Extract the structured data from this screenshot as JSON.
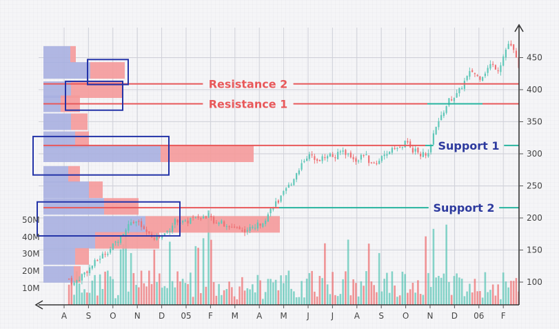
{
  "chart_data": {
    "type": "candlestick",
    "x_ticks": [
      "A",
      "S",
      "O",
      "N",
      "D",
      "05",
      "F",
      "M",
      "A",
      "M",
      "J",
      "J",
      "A",
      "S",
      "O",
      "N",
      "D",
      "06",
      "F"
    ],
    "y_ticks": [
      "450",
      "400",
      "350",
      "300",
      "250",
      "200",
      "150",
      "100"
    ],
    "y_range": [
      50,
      480
    ],
    "volume_ticks": [
      "50M",
      "40M",
      "30M",
      "20M",
      "10M"
    ],
    "levels": [
      {
        "label": "Resistance 2",
        "value": 409,
        "kind": "resistance"
      },
      {
        "label": "Resistance 1",
        "value": 378,
        "kind": "resistance"
      },
      {
        "label": "Support 1",
        "value": 313,
        "kind": "support"
      },
      {
        "label": "Support 2",
        "value": 216,
        "kind": "support"
      }
    ],
    "price_path": [
      [
        0.2,
        105
      ],
      [
        0.4,
        97
      ],
      [
        0.7,
        110
      ],
      [
        1.0,
        120
      ],
      [
        1.3,
        132
      ],
      [
        1.6,
        143
      ],
      [
        1.9,
        152
      ],
      [
        2.2,
        166
      ],
      [
        2.5,
        180
      ],
      [
        2.8,
        198
      ],
      [
        3.0,
        193
      ],
      [
        3.3,
        180
      ],
      [
        3.6,
        168
      ],
      [
        4.0,
        172
      ],
      [
        4.3,
        182
      ],
      [
        4.6,
        198
      ],
      [
        4.8,
        193
      ],
      [
        5.0,
        192
      ],
      [
        5.2,
        200
      ],
      [
        5.5,
        196
      ],
      [
        5.8,
        204
      ],
      [
        6.1,
        196
      ],
      [
        6.4,
        194
      ],
      [
        6.7,
        183
      ],
      [
        7.0,
        188
      ],
      [
        7.3,
        180
      ],
      [
        7.6,
        183
      ],
      [
        8.0,
        190
      ],
      [
        8.3,
        202
      ],
      [
        8.6,
        222
      ],
      [
        8.8,
        226
      ],
      [
        9.0,
        238
      ],
      [
        9.3,
        255
      ],
      [
        9.6,
        275
      ],
      [
        9.9,
        296
      ],
      [
        10.2,
        296
      ],
      [
        10.5,
        291
      ],
      [
        10.8,
        300
      ],
      [
        11.1,
        294
      ],
      [
        11.4,
        306
      ],
      [
        11.7,
        297
      ],
      [
        12.0,
        290
      ],
      [
        12.3,
        300
      ],
      [
        12.6,
        282
      ],
      [
        12.9,
        290
      ],
      [
        13.2,
        296
      ],
      [
        13.5,
        314
      ],
      [
        13.7,
        306
      ],
      [
        14.0,
        318
      ],
      [
        14.3,
        306
      ],
      [
        14.6,
        300
      ],
      [
        14.9,
        296
      ],
      [
        15.2,
        336
      ],
      [
        15.5,
        362
      ],
      [
        15.8,
        385
      ],
      [
        16.1,
        392
      ],
      [
        16.4,
        412
      ],
      [
        16.7,
        430
      ],
      [
        17.0,
        418
      ],
      [
        17.2,
        425
      ],
      [
        17.5,
        440
      ],
      [
        17.8,
        432
      ],
      [
        18.0,
        452
      ],
      [
        18.2,
        472
      ],
      [
        18.4,
        462
      ],
      [
        18.6,
        440
      ],
      [
        18.8,
        430
      ],
      [
        19.0,
        412
      ],
      [
        19.2,
        405
      ],
      [
        19.4,
        378
      ],
      [
        19.6,
        352
      ],
      [
        19.8,
        340
      ]
    ],
    "volume_profile": [
      {
        "price": 455,
        "buy": 39,
        "sell": 8
      },
      {
        "price": 430,
        "buy": 68,
        "sell": 50
      },
      {
        "price": 400,
        "buy": 40,
        "sell": 76
      },
      {
        "price": 378,
        "buy": 25,
        "sell": 28
      },
      {
        "price": 350,
        "buy": 40,
        "sell": 24
      },
      {
        "price": 322,
        "buy": 46,
        "sell": 20
      },
      {
        "price": 300,
        "buy": 170,
        "sell": 135
      },
      {
        "price": 268,
        "buy": 36,
        "sell": 17
      },
      {
        "price": 244,
        "buy": 66,
        "sell": 20
      },
      {
        "price": 218,
        "buy": 88,
        "sell": 50
      },
      {
        "price": 190,
        "buy": 148,
        "sell": 195
      },
      {
        "price": 165,
        "buy": 75,
        "sell": 93
      },
      {
        "price": 140,
        "buy": 46,
        "sell": 20
      },
      {
        "price": 112,
        "buy": 44,
        "sell": 10
      }
    ],
    "callout_boxes": [
      {
        "low": 408,
        "high": 447
      },
      {
        "low": 368,
        "high": 413
      },
      {
        "low": 267,
        "high": 327
      },
      {
        "low": 172,
        "high": 225
      }
    ],
    "colors": {
      "up": "#5fc7b8",
      "down": "#ee7174",
      "resistance": "#e8585a",
      "support": "#28b49f",
      "box": "#2333a8",
      "profile_buy": "#a8b0e0",
      "profile_sell": "#f59a9a"
    }
  }
}
